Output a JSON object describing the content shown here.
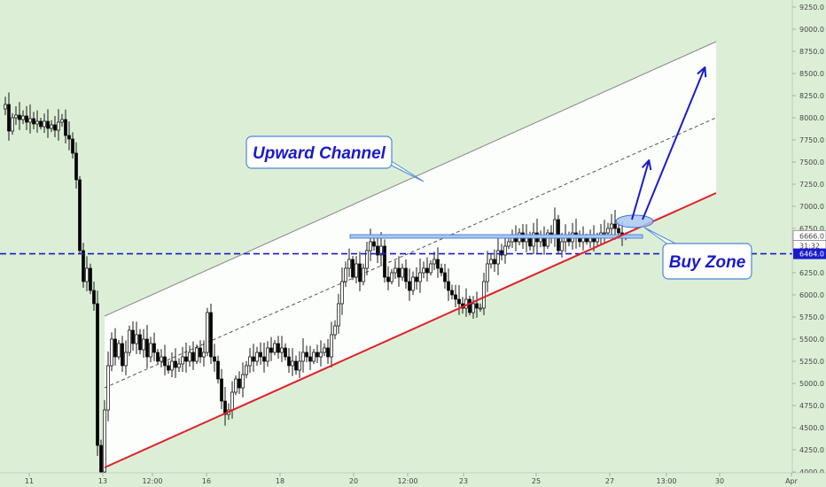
{
  "chart_data": {
    "type": "candlestick",
    "x_ticks": [
      "11",
      "13",
      "12:00",
      "16",
      "18",
      "20",
      "12:00",
      "23",
      "25",
      "27",
      "13:00",
      "30",
      "Apr"
    ],
    "y_ticks": [
      4000,
      4250,
      4500,
      4750,
      5000,
      5250,
      5500,
      5750,
      6000,
      6250,
      6500,
      6750,
      7000,
      7250,
      7500,
      7750,
      8000,
      8250,
      8500,
      8750,
      9000,
      9250
    ],
    "y_tick_labels": [
      "4000.0",
      "4250.0",
      "4500.0",
      "4750.0",
      "5000.0",
      "5250.0",
      "5500.0",
      "5750.0",
      "6000.0",
      "6250.0",
      "6500.0",
      "6750.0",
      "7000.0",
      "7250.0",
      "7500.0",
      "7750.0",
      "8000.0",
      "8250.0",
      "8500.0",
      "8750.0",
      "9000.0",
      "9250.0"
    ],
    "ylim": [
      3830,
      9330
    ],
    "grid": false,
    "price_badges": {
      "current": "6666.0",
      "countdown": "31:32",
      "horizontal_level": "6464.0"
    },
    "horizontal_level": 6464,
    "colors": {
      "background": "#dcefd6",
      "candles": "#000000",
      "support": "#e0202a",
      "channel_top": "#888888",
      "midline": "#555555",
      "level": "#1a1acc",
      "arrows": "#1a1acc"
    },
    "annotations": [
      {
        "text": "Upward Channel"
      },
      {
        "text": "Buy Zone"
      }
    ]
  }
}
